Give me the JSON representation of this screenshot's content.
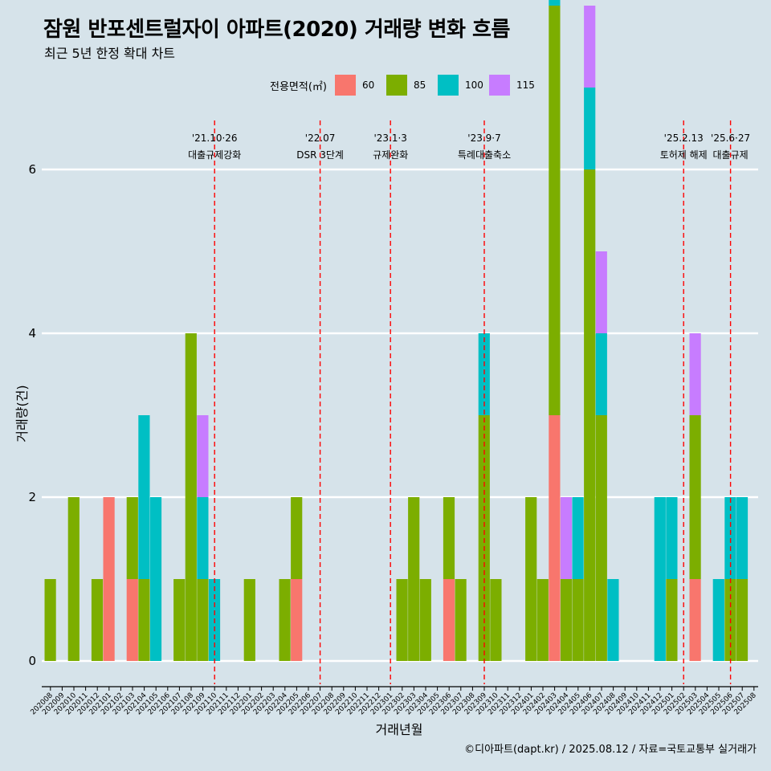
{
  "title": "잠원 반포센트럴자이 아파트(2020) 거래량 변화 흐름",
  "subtitle": "최근 5년 한정 확대 차트",
  "caption": "©디아파트(dapt.kr) / 2025.08.12 / 자료=국토교통부 실거래가",
  "legend": {
    "title": "전용면적(㎡)",
    "items": [
      {
        "label": "60",
        "color": "#f8766d"
      },
      {
        "label": "85",
        "color": "#7cae00"
      },
      {
        "label": "100",
        "color": "#00bfc4"
      },
      {
        "label": "115",
        "color": "#c77cff"
      }
    ]
  },
  "chart_data": {
    "type": "bar",
    "xlabel": "거래년월",
    "ylabel": "거래량(건)",
    "ylim": [
      0,
      6
    ],
    "yticks": [
      0,
      2,
      4,
      6
    ],
    "grid": true,
    "legend_position": "top",
    "categories": [
      "202008",
      "202009",
      "202010",
      "202011",
      "202012",
      "202101",
      "202102",
      "202103",
      "202104",
      "202105",
      "202106",
      "202107",
      "202108",
      "202109",
      "202110",
      "202111",
      "202112",
      "202201",
      "202202",
      "202203",
      "202204",
      "202205",
      "202206",
      "202207",
      "202208",
      "202209",
      "202210",
      "202211",
      "202212",
      "202301",
      "202302",
      "202303",
      "202304",
      "202305",
      "202306",
      "202307",
      "202308",
      "202309",
      "202310",
      "202311",
      "202312",
      "202401",
      "202402",
      "202403",
      "202404",
      "202405",
      "202406",
      "202407",
      "202408",
      "202409",
      "202410",
      "202411",
      "202412",
      "202501",
      "202502",
      "202503",
      "202504",
      "202505",
      "202506",
      "202507",
      "202508"
    ],
    "series": [
      {
        "name": "60",
        "color": "#f8766d",
        "values": [
          0,
          0,
          0,
          0,
          0,
          2,
          0,
          1,
          0,
          0,
          0,
          0,
          0,
          0,
          0,
          0,
          0,
          0,
          0,
          0,
          0,
          1,
          0,
          0,
          0,
          0,
          0,
          0,
          0,
          0,
          0,
          0,
          0,
          0,
          1,
          0,
          0,
          0,
          0,
          0,
          0,
          0,
          0,
          3,
          0,
          0,
          0,
          0,
          0,
          0,
          0,
          0,
          0,
          0,
          0,
          1,
          0,
          0,
          0,
          0,
          0
        ]
      },
      {
        "name": "85",
        "color": "#7cae00",
        "values": [
          1,
          0,
          2,
          0,
          1,
          0,
          0,
          1,
          1,
          0,
          0,
          1,
          4,
          1,
          0,
          0,
          0,
          1,
          0,
          0,
          1,
          1,
          0,
          0,
          0,
          0,
          0,
          0,
          0,
          0,
          1,
          2,
          1,
          0,
          1,
          1,
          0,
          3,
          1,
          0,
          0,
          2,
          1,
          5,
          1,
          1,
          6,
          3,
          0,
          0,
          0,
          0,
          0,
          1,
          0,
          2,
          0,
          0,
          1,
          1,
          0
        ]
      },
      {
        "name": "100",
        "color": "#00bfc4",
        "values": [
          0,
          0,
          0,
          0,
          0,
          0,
          0,
          0,
          2,
          2,
          0,
          0,
          0,
          1,
          1,
          0,
          0,
          0,
          0,
          0,
          0,
          0,
          0,
          0,
          0,
          0,
          0,
          0,
          0,
          0,
          0,
          0,
          0,
          0,
          0,
          0,
          0,
          1,
          0,
          0,
          0,
          0,
          0,
          1,
          0,
          1,
          1,
          1,
          1,
          0,
          0,
          0,
          2,
          1,
          0,
          0,
          0,
          1,
          1,
          1,
          0
        ]
      },
      {
        "name": "115",
        "color": "#c77cff",
        "values": [
          0,
          0,
          0,
          0,
          0,
          0,
          0,
          0,
          0,
          0,
          0,
          0,
          0,
          1,
          0,
          0,
          0,
          0,
          0,
          0,
          0,
          0,
          0,
          0,
          0,
          0,
          0,
          0,
          0,
          0,
          0,
          0,
          0,
          0,
          0,
          0,
          0,
          0,
          0,
          0,
          0,
          0,
          0,
          0,
          1,
          0,
          1,
          1,
          0,
          0,
          0,
          0,
          0,
          0,
          0,
          1,
          0,
          0,
          0,
          0,
          0
        ]
      }
    ],
    "annotations": [
      {
        "month": "202110",
        "date": "'21.10·26",
        "label": "대출규제강화"
      },
      {
        "month": "202207",
        "date": "'22.07",
        "label": "DSR 3단계"
      },
      {
        "month": "202301",
        "date": "'23.1·3",
        "label": "규제완화"
      },
      {
        "month": "202309",
        "date": "'23.9·7",
        "label": "특례대출축소"
      },
      {
        "month": "202502",
        "date": "'25.2.13",
        "label": "토허제 해제"
      },
      {
        "month": "202506",
        "date": "'25.6·27",
        "label": "대출규제"
      }
    ]
  }
}
